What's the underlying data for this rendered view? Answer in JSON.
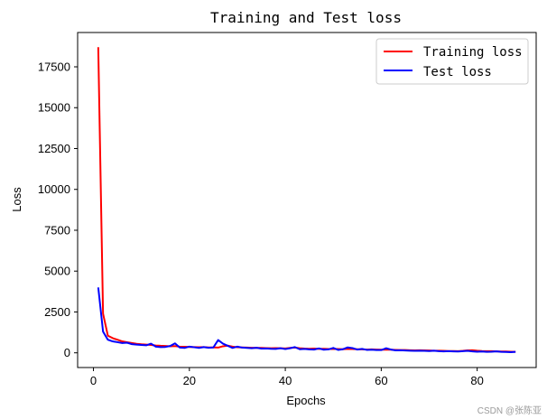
{
  "chart_data": {
    "type": "line",
    "title": "Training and Test loss",
    "xlabel": "Epochs",
    "ylabel": "Loss",
    "xlim": [
      -3.3,
      92.3
    ],
    "ylim": [
      -900,
      19600
    ],
    "x_ticks": [
      0,
      20,
      40,
      60,
      80
    ],
    "y_ticks": [
      0,
      2500,
      5000,
      7500,
      10000,
      12500,
      15000,
      17500
    ],
    "grid": false,
    "legend_position": "top-right",
    "series": [
      {
        "name": "Training loss",
        "color": "#ff0000",
        "x": [
          1,
          2,
          3,
          4,
          5,
          6,
          7,
          8,
          9,
          10,
          11,
          12,
          13,
          14,
          15,
          16,
          17,
          18,
          19,
          20,
          21,
          22,
          23,
          24,
          25,
          26,
          27,
          28,
          29,
          30,
          31,
          32,
          33,
          34,
          35,
          36,
          37,
          38,
          39,
          40,
          41,
          42,
          43,
          44,
          45,
          46,
          47,
          48,
          49,
          50,
          51,
          52,
          53,
          54,
          55,
          56,
          57,
          58,
          59,
          60,
          61,
          62,
          63,
          64,
          65,
          66,
          67,
          68,
          69,
          70,
          71,
          72,
          73,
          74,
          75,
          76,
          77,
          78,
          79,
          80,
          81,
          82,
          83,
          84,
          85,
          86,
          87,
          88
        ],
        "values": [
          18700,
          2400,
          1050,
          900,
          800,
          700,
          650,
          600,
          550,
          520,
          500,
          480,
          450,
          430,
          420,
          400,
          410,
          380,
          370,
          360,
          350,
          340,
          350,
          330,
          330,
          320,
          400,
          440,
          380,
          340,
          330,
          320,
          310,
          300,
          300,
          290,
          280,
          290,
          280,
          270,
          300,
          320,
          280,
          260,
          250,
          260,
          240,
          250,
          230,
          240,
          230,
          220,
          240,
          230,
          220,
          210,
          200,
          210,
          200,
          190,
          200,
          190,
          180,
          170,
          170,
          160,
          150,
          160,
          150,
          140,
          130,
          130,
          120,
          110,
          110,
          100,
          120,
          150,
          160,
          130,
          110,
          100,
          100,
          90,
          80,
          80,
          70,
          60
        ]
      },
      {
        "name": "Test loss",
        "color": "#0000ff",
        "x": [
          1,
          2,
          3,
          4,
          5,
          6,
          7,
          8,
          9,
          10,
          11,
          12,
          13,
          14,
          15,
          16,
          17,
          18,
          19,
          20,
          21,
          22,
          23,
          24,
          25,
          26,
          27,
          28,
          29,
          30,
          31,
          32,
          33,
          34,
          35,
          36,
          37,
          38,
          39,
          40,
          41,
          42,
          43,
          44,
          45,
          46,
          47,
          48,
          49,
          50,
          51,
          52,
          53,
          54,
          55,
          56,
          57,
          58,
          59,
          60,
          61,
          62,
          63,
          64,
          65,
          66,
          67,
          68,
          69,
          70,
          71,
          72,
          73,
          74,
          75,
          76,
          77,
          78,
          79,
          80,
          81,
          82,
          83,
          84,
          85,
          86,
          87,
          88
        ],
        "values": [
          4000,
          1300,
          800,
          700,
          650,
          600,
          620,
          530,
          500,
          480,
          460,
          560,
          380,
          350,
          360,
          420,
          580,
          320,
          300,
          380,
          340,
          300,
          350,
          310,
          330,
          780,
          560,
          430,
          300,
          380,
          320,
          300,
          280,
          310,
          260,
          270,
          250,
          240,
          280,
          230,
          280,
          350,
          220,
          240,
          210,
          200,
          270,
          190,
          210,
          300,
          180,
          220,
          330,
          290,
          200,
          240,
          180,
          190,
          170,
          170,
          280,
          200,
          150,
          160,
          140,
          130,
          120,
          130,
          120,
          110,
          130,
          100,
          90,
          100,
          90,
          80,
          100,
          120,
          90,
          70,
          80,
          60,
          70,
          90,
          60,
          50,
          40,
          60
        ]
      }
    ]
  },
  "watermark": "CSDN @张陈亚"
}
